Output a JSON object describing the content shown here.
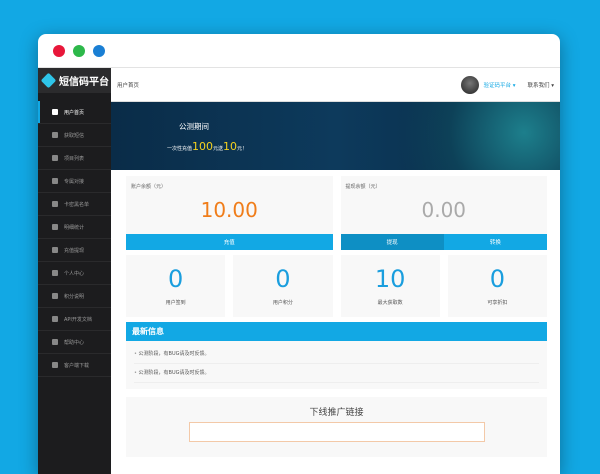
{
  "window": {
    "dots": [
      "#e8173a",
      "#2db84a",
      "#1a7fd4"
    ]
  },
  "brand": {
    "name": "短信码平台",
    "icon": "cube-icon"
  },
  "sidebar": {
    "items": [
      {
        "label": "用户首页",
        "icon": "home-icon",
        "active": true
      },
      {
        "label": "获取短信",
        "icon": "message-icon"
      },
      {
        "label": "项目列表",
        "icon": "list-icon"
      },
      {
        "label": "专属对接",
        "icon": "link-icon"
      },
      {
        "label": "卡密黑名单",
        "icon": "blacklist-icon"
      },
      {
        "label": "明细统计",
        "icon": "chart-icon"
      },
      {
        "label": "充值提现",
        "icon": "wallet-icon"
      },
      {
        "label": "个人中心",
        "icon": "user-icon"
      },
      {
        "label": "积分说明",
        "icon": "medal-icon"
      },
      {
        "label": "API开发文档",
        "icon": "document-icon"
      },
      {
        "label": "帮助中心",
        "icon": "help-icon"
      },
      {
        "label": "客户端下载",
        "icon": "download-icon"
      }
    ]
  },
  "header": {
    "breadcrumb": "用户首页",
    "user": "验证码平台 ▾",
    "contact": "联系我们 ▾"
  },
  "banner": {
    "title": "公测期间",
    "promo_pre": "一次性充值",
    "promo_amount": "100",
    "promo_mid": "元送",
    "promo_bonus": "10",
    "promo_post": "元！"
  },
  "balance": {
    "label": "账户余额（元）",
    "value": "10.00",
    "color": "#f07d1a",
    "button": "充值"
  },
  "withdraw": {
    "label": "提现余额（元）",
    "value": "0.00",
    "color": "#aaaaaa",
    "buttons": [
      "提现",
      "转换"
    ]
  },
  "stats": [
    {
      "value": "0",
      "label": "用户签到"
    },
    {
      "value": "0",
      "label": "用户积分"
    },
    {
      "value": "10",
      "label": "最大获取数"
    },
    {
      "value": "0",
      "label": "可享折扣"
    }
  ],
  "news": {
    "title": "最新信息",
    "items": [
      "公测阶段，有BUG请及时反馈。",
      "公测阶段，有BUG请及时反馈。"
    ]
  },
  "promo": {
    "title": "下线推广链接",
    "link": ""
  },
  "colors": {
    "accent": "#12a8e4",
    "sidebar": "#1c1c1e"
  }
}
